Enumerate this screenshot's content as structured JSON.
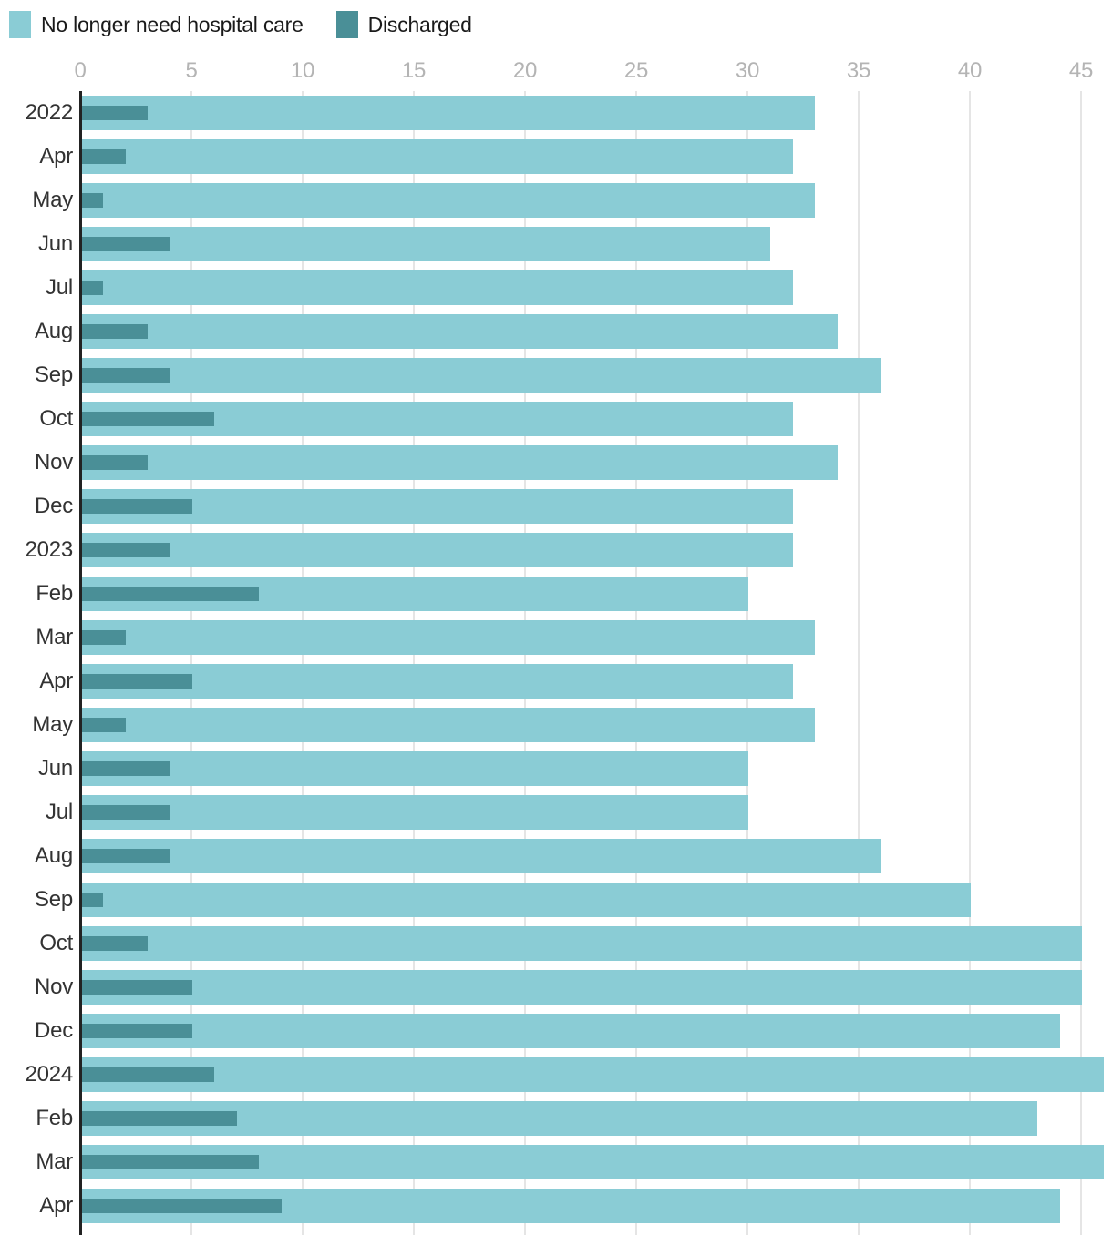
{
  "legend": {
    "items": [
      {
        "label": "No longer need hospital care",
        "color": "#8accd5"
      },
      {
        "label": "Discharged",
        "color": "#4a8f97"
      }
    ]
  },
  "chart_data": {
    "type": "bar",
    "orientation": "horizontal",
    "title": "",
    "xlabel": "",
    "ylabel": "",
    "x_ticks": [
      0,
      5,
      10,
      15,
      20,
      25,
      30,
      35,
      40,
      45
    ],
    "xlim": [
      0,
      46.4
    ],
    "grid": true,
    "legend_position": "top-left",
    "categories": [
      "2022",
      "Apr",
      "May",
      "Jun",
      "Jul",
      "Aug",
      "Sep",
      "Oct",
      "Nov",
      "Dec",
      "2023",
      "Feb",
      "Mar",
      "Apr",
      "May",
      "Jun",
      "Jul",
      "Aug",
      "Sep",
      "Oct",
      "Nov",
      "Dec",
      "2024",
      "Feb",
      "Mar",
      "Apr"
    ],
    "series": [
      {
        "name": "No longer need hospital care",
        "color": "#8accd5",
        "values": [
          33,
          32,
          33,
          31,
          32,
          34,
          36,
          32,
          34,
          32,
          32,
          30,
          33,
          32,
          33,
          30,
          30,
          36,
          40,
          45,
          45,
          44,
          46,
          43,
          46,
          44
        ]
      },
      {
        "name": "Discharged",
        "color": "#4a8f97",
        "values": [
          3,
          2,
          1,
          4,
          1,
          3,
          4,
          6,
          3,
          5,
          4,
          8,
          2,
          5,
          2,
          4,
          4,
          4,
          1,
          3,
          5,
          5,
          6,
          7,
          8,
          9
        ]
      }
    ],
    "colors": {
      "axis_line": "#222222",
      "gridline": "#e5e5e5",
      "tick_text": "#b4b4b4",
      "label_text": "#333333"
    }
  }
}
